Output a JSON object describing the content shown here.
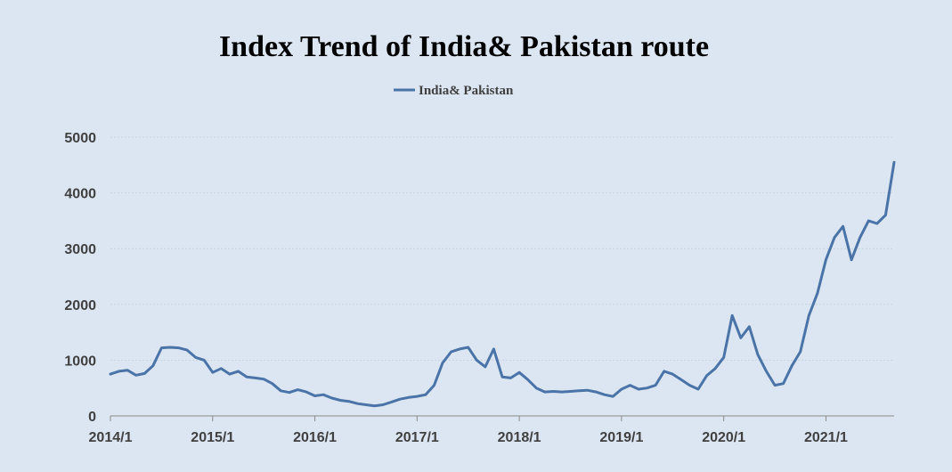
{
  "chart_data": {
    "type": "line",
    "title": "Index Trend of India& Pakistan route",
    "xlabel": "",
    "ylabel": "",
    "ylim": [
      0,
      5000
    ],
    "yticks": [
      0,
      1000,
      2000,
      3000,
      4000,
      5000
    ],
    "xlim": [
      2014.0,
      2021.667
    ],
    "xticks": [
      "2014/1",
      "2015/1",
      "2016/1",
      "2017/1",
      "2018/1",
      "2019/1",
      "2020/1",
      "2021/1"
    ],
    "grid": true,
    "legend_position": "top-center",
    "colors": {
      "series": "#4a74a8",
      "background": "#dce6f2"
    },
    "series": [
      {
        "name": "India& Pakistan",
        "x": [
          "2014/1",
          "2014/2",
          "2014/3",
          "2014/4",
          "2014/5",
          "2014/6",
          "2014/7",
          "2014/8",
          "2014/9",
          "2014/10",
          "2014/11",
          "2014/12",
          "2015/1",
          "2015/2",
          "2015/3",
          "2015/4",
          "2015/5",
          "2015/6",
          "2015/7",
          "2015/8",
          "2015/9",
          "2015/10",
          "2015/11",
          "2015/12",
          "2016/1",
          "2016/2",
          "2016/3",
          "2016/4",
          "2016/5",
          "2016/6",
          "2016/7",
          "2016/8",
          "2016/9",
          "2016/10",
          "2016/11",
          "2016/12",
          "2017/1",
          "2017/2",
          "2017/3",
          "2017/4",
          "2017/5",
          "2017/6",
          "2017/7",
          "2017/8",
          "2017/9",
          "2017/10",
          "2017/11",
          "2017/12",
          "2018/1",
          "2018/2",
          "2018/3",
          "2018/4",
          "2018/5",
          "2018/6",
          "2018/7",
          "2018/8",
          "2018/9",
          "2018/10",
          "2018/11",
          "2018/12",
          "2019/1",
          "2019/2",
          "2019/3",
          "2019/4",
          "2019/5",
          "2019/6",
          "2019/7",
          "2019/8",
          "2019/9",
          "2019/10",
          "2019/11",
          "2019/12",
          "2020/1",
          "2020/2",
          "2020/3",
          "2020/4",
          "2020/5",
          "2020/6",
          "2020/7",
          "2020/8",
          "2020/9",
          "2020/10",
          "2020/11",
          "2020/12",
          "2021/1",
          "2021/2",
          "2021/3",
          "2021/4",
          "2021/5",
          "2021/6",
          "2021/7",
          "2021/8",
          "2021/9"
        ],
        "values": [
          750,
          800,
          820,
          730,
          760,
          900,
          1220,
          1230,
          1220,
          1180,
          1050,
          1000,
          780,
          850,
          750,
          800,
          700,
          680,
          660,
          580,
          450,
          420,
          470,
          430,
          360,
          380,
          320,
          280,
          260,
          220,
          200,
          180,
          200,
          250,
          300,
          330,
          350,
          380,
          550,
          950,
          1150,
          1200,
          1230,
          1000,
          880,
          1200,
          700,
          680,
          780,
          650,
          500,
          430,
          440,
          430,
          440,
          450,
          460,
          430,
          380,
          350,
          480,
          550,
          480,
          500,
          550,
          800,
          750,
          650,
          550,
          480,
          720,
          850,
          1050,
          1800,
          1400,
          1600,
          1100,
          800,
          550,
          580,
          900,
          1150,
          1800,
          2200,
          2800,
          3200,
          3400,
          2800,
          3200,
          3500,
          3450,
          3600,
          4550
        ]
      }
    ]
  }
}
